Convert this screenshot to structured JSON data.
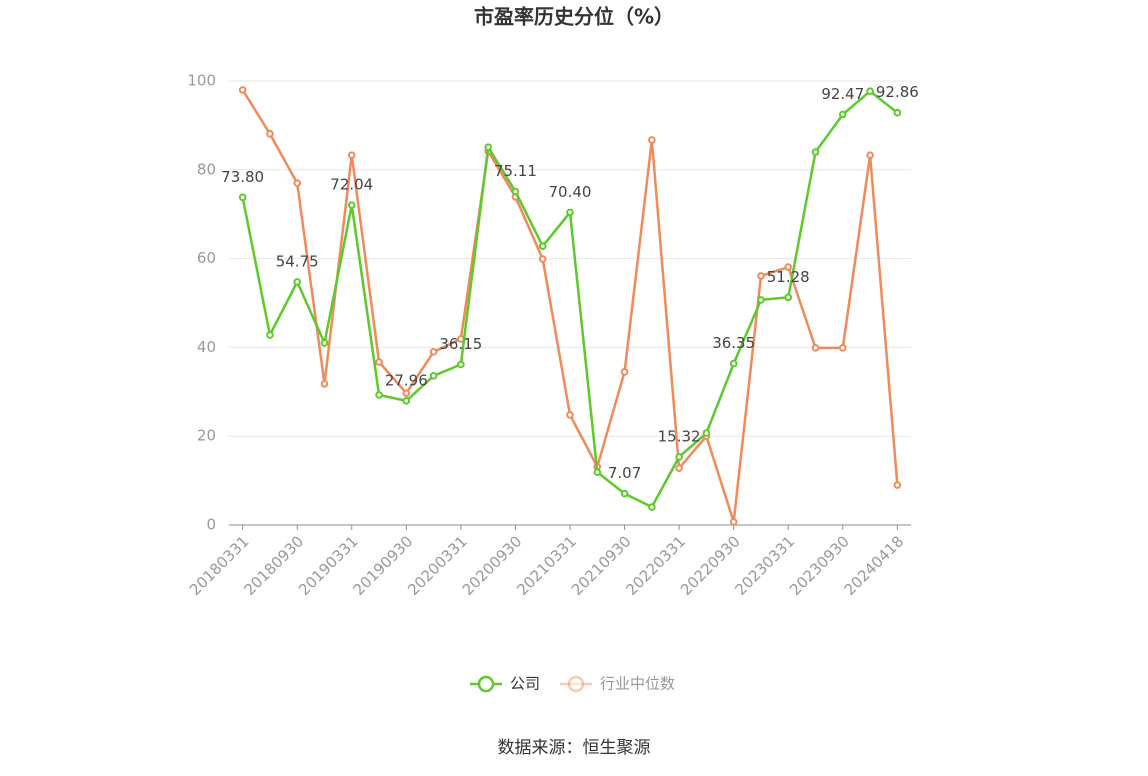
{
  "chart_data": {
    "type": "line",
    "title": "市盈率历史分位（%）",
    "categories": [
      "20180331",
      null,
      "20180930",
      null,
      "20190331",
      null,
      "20190930",
      null,
      "20200331",
      null,
      "20200930",
      null,
      "20210331",
      null,
      "20210930",
      null,
      "20220331",
      null,
      "20220930",
      null,
      "20230331",
      null,
      "20230930",
      null,
      "20240418"
    ],
    "series": [
      {
        "name": "公司",
        "color": "#5dc92a",
        "values": [
          73.8,
          42.8,
          54.75,
          41.0,
          72.04,
          29.3,
          27.96,
          33.6,
          36.15,
          85.1,
          75.11,
          62.8,
          70.4,
          11.9,
          7.07,
          4.05,
          15.32,
          20.7,
          36.35,
          50.7,
          51.28,
          84.0,
          92.47,
          97.7,
          92.86
        ],
        "value_labels": [
          "73.80",
          null,
          "54.75",
          null,
          "72.04",
          null,
          "27.96",
          null,
          "36.15",
          null,
          "75.11",
          null,
          "70.40",
          null,
          "7.07",
          null,
          "15.32",
          null,
          "36.35",
          null,
          "51.28",
          null,
          "92.47",
          null,
          "92.86"
        ]
      },
      {
        "name": "行业中位数",
        "color": "#f08a5a",
        "values": [
          98.0,
          88.1,
          77.0,
          31.8,
          83.3,
          36.7,
          29.7,
          39.0,
          41.9,
          84.2,
          73.9,
          59.9,
          24.8,
          13.1,
          34.5,
          86.7,
          12.8,
          20.0,
          0.7,
          56.1,
          58.1,
          39.9,
          39.9,
          83.3,
          9.0
        ]
      }
    ],
    "ylim": [
      0,
      100
    ],
    "yticks": [
      0,
      20,
      40,
      60,
      80,
      100
    ],
    "grid": true,
    "source": "数据来源：恒生聚源"
  }
}
